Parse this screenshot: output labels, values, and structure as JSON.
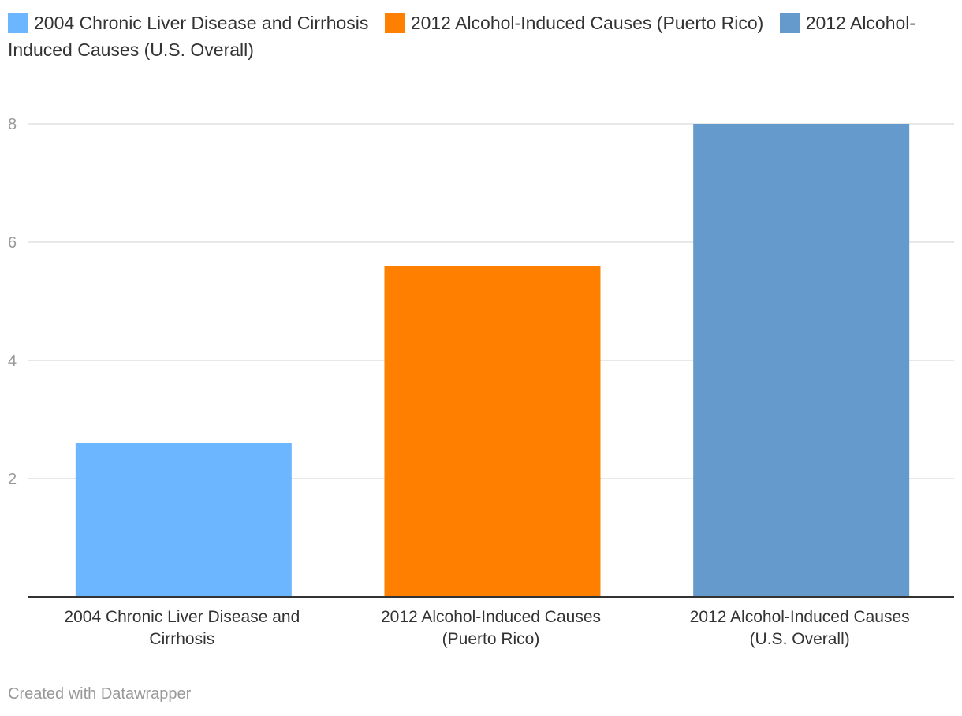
{
  "chart_data": {
    "type": "bar",
    "categories": [
      [
        "2004 Chronic Liver Disease and",
        "Cirrhosis"
      ],
      [
        "2012 Alcohol-Induced Causes",
        "(Puerto Rico)"
      ],
      [
        "2012 Alcohol-Induced Causes",
        "(U.S. Overall)"
      ]
    ],
    "values": [
      2.6,
      5.6,
      8.0
    ],
    "colors": [
      "#6bb6ff",
      "#ff7f00",
      "#659bcc"
    ],
    "legend": [
      {
        "label": "2004 Chronic Liver Disease and Cirrhosis",
        "color": "#6bb6ff"
      },
      {
        "label": "2012 Alcohol-Induced Causes (Puerto Rico)",
        "color": "#ff7f00"
      },
      {
        "label": "2012 Alcohol-Induced Causes (U.S. Overall)",
        "color": "#659bcc"
      }
    ],
    "legend_position": "top",
    "yticks": [
      2,
      4,
      6,
      8
    ],
    "ylim": [
      0,
      8
    ],
    "grid": true,
    "title": "",
    "xlabel": "",
    "ylabel": ""
  },
  "footer": {
    "credit": "Created with Datawrapper"
  }
}
